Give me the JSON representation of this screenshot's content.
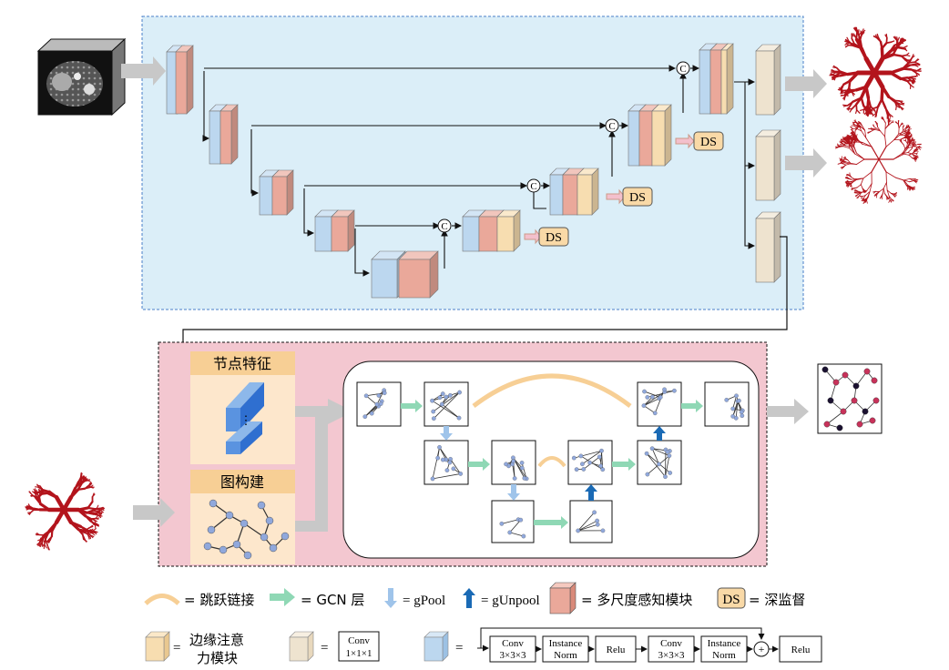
{
  "colors": {
    "unet_bg": "#dbeef8",
    "gcn_bg": "#f3c7d0",
    "block_blue": "#bcd7ef",
    "block_red": "#eaa89a",
    "block_yellow": "#f7ddb0",
    "block_beige": "#eee3cf",
    "ds_fill": "#f9d9a7",
    "skip_arc": "#f7cf95",
    "gcn_arrow": "#8fd8b5",
    "gpool_arrow": "#9fc4ea",
    "gunpool_arrow": "#1a6ab5",
    "vessel": "#b3141c",
    "node": "#90a8dc"
  },
  "unet": {
    "concat_symbol": "C",
    "ds_labels": [
      "DS",
      "DS",
      "DS"
    ]
  },
  "gcn": {
    "node_feature_title": "节点特征",
    "graph_build_title": "图构建",
    "vertical_dots": "⋮"
  },
  "legend": {
    "skip_label": "= 跳跃链接",
    "gcn_label": "= GCN 层",
    "gpool_label": "= gPool",
    "gunpool_label": "= gUnpool",
    "multiscale_label": "= 多尺度感知模块",
    "ds_box": "DS",
    "ds_label": "= 深监督",
    "edge_attn_line1": "边缘注意",
    "edge_attn_line2": "力模块",
    "equals": "=",
    "conv1_line1": "Conv",
    "conv1_line2": "1×1×1",
    "pipeline": {
      "conv_a_line1": "Conv",
      "conv_a_line2": "3×3×3",
      "norm_a_line1": "Instance",
      "norm_a_line2": "Norm",
      "relu_a": "Relu",
      "conv_b_line1": "Conv",
      "conv_b_line2": "3×3×3",
      "norm_b_line1": "Instance",
      "norm_b_line2": "Norm",
      "plus": "+",
      "relu_b": "Relu"
    }
  }
}
